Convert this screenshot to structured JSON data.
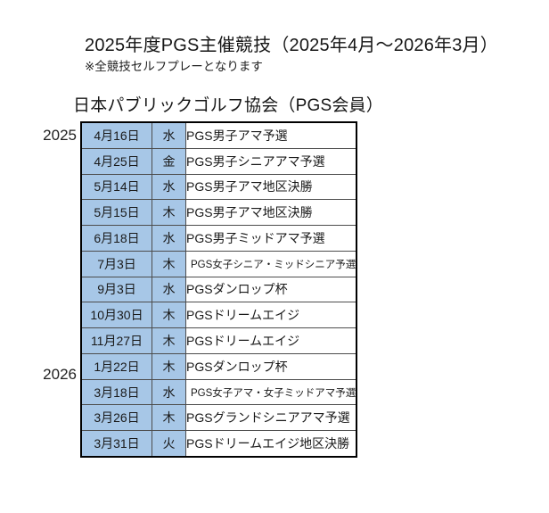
{
  "document": {
    "title": "2025年度PGS主催競技（2025年4月～2026年3月）",
    "note": "※全競技セルフプレーとなります",
    "section_title": "日本パブリックゴルフ協会（PGS会員）"
  },
  "colors": {
    "highlight_blue": "#A7C7E7",
    "text": "#1A1A1A",
    "border_outer": "#000000",
    "border_inner": "#4D4D4D",
    "background": "#FFFFFF"
  },
  "schedule": {
    "year_labels": {
      "first": "2025",
      "second": "2026"
    },
    "rows": [
      {
        "date": "4月16日",
        "day": "水",
        "event": "PGS男子アマ予選"
      },
      {
        "date": "4月25日",
        "day": "金",
        "event": "PGS男子シニアアマ予選"
      },
      {
        "date": "5月14日",
        "day": "水",
        "event": "PGS男子アマ地区決勝"
      },
      {
        "date": "5月15日",
        "day": "木",
        "event": "PGS男子アマ地区決勝"
      },
      {
        "date": "6月18日",
        "day": "水",
        "event": "PGS男子ミッドアマ予選"
      },
      {
        "date": "7月3日",
        "day": "木",
        "event": "PGS女子シニア・ミッドシニア予選"
      },
      {
        "date": "9月3日",
        "day": "水",
        "event": "PGSダンロップ杯"
      },
      {
        "date": "10月30日",
        "day": "木",
        "event": "PGSドリームエイジ"
      },
      {
        "date": "11月27日",
        "day": "木",
        "event": "PGSドリームエイジ"
      },
      {
        "date": "1月22日",
        "day": "木",
        "event": "PGSダンロップ杯"
      },
      {
        "date": "3月18日",
        "day": "水",
        "event": "PGS女子アマ・女子ミッドアマ予選"
      },
      {
        "date": "3月26日",
        "day": "木",
        "event": "PGSグランドシニアアマ予選"
      },
      {
        "date": "3月31日",
        "day": "火",
        "event": "PGSドリームエイジ地区決勝"
      }
    ]
  }
}
